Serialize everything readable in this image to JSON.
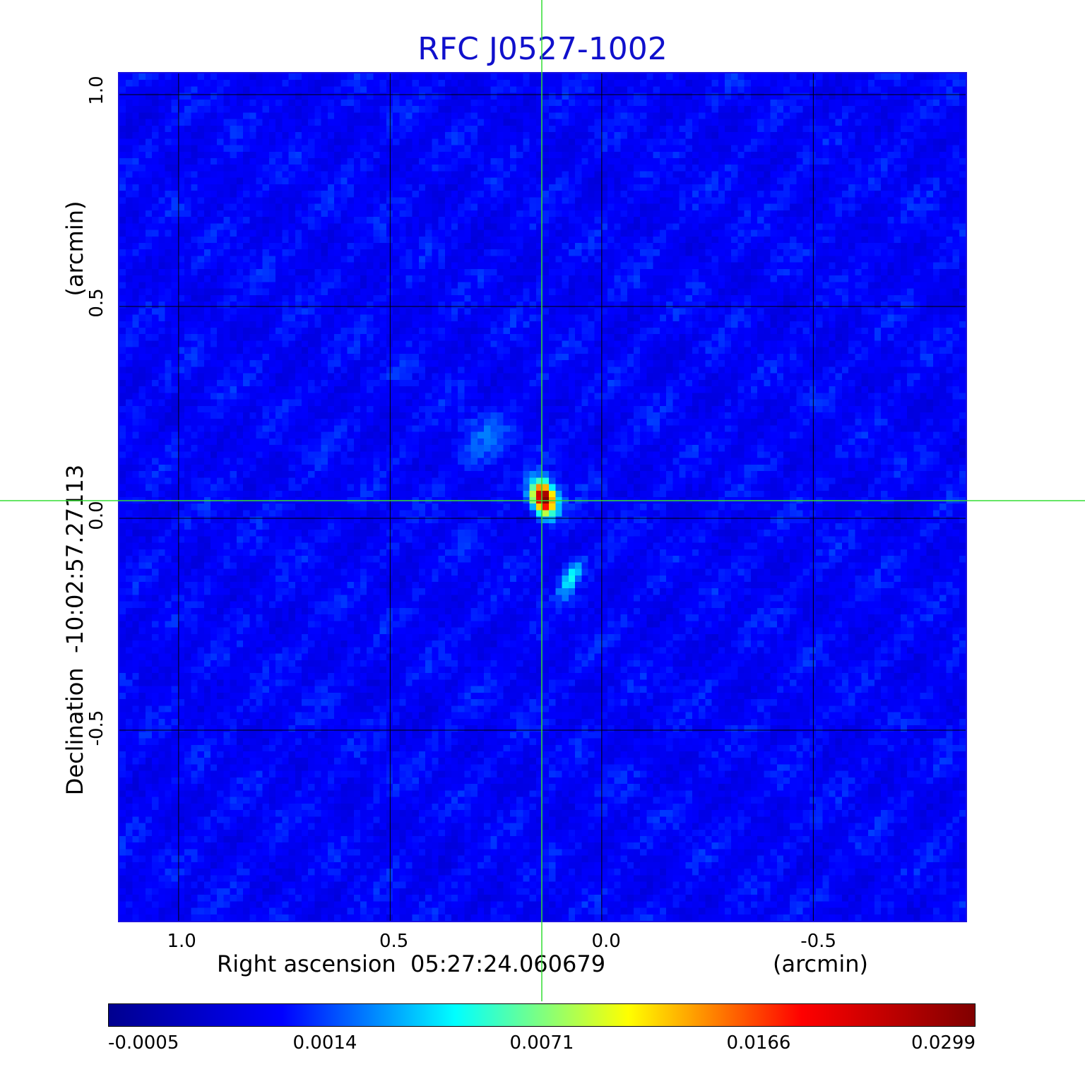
{
  "title": "RFC J0527-1002",
  "x_axis": {
    "label": "Right ascension  05:27:24.060679",
    "unit": "(arcmin)",
    "ticks": [
      "1.0",
      "0.5",
      "0.0",
      "-0.5"
    ]
  },
  "y_axis": {
    "label": "Declination  -10:02:57.27113",
    "unit": "(arcmin)",
    "ticks": [
      "1.0",
      "0.5",
      "0.0",
      "-0.5"
    ]
  },
  "colorbar": {
    "ticks": [
      "-0.0005",
      "0.0014",
      "0.0071",
      "0.0166",
      "0.0299"
    ],
    "colors": [
      "#00008f",
      "#0000ff",
      "#00ffff",
      "#ffff00",
      "#ff0000",
      "#800000"
    ]
  },
  "image": {
    "colormap": "jet",
    "background_color": "#1846f0",
    "frame_color": "#1a10e0",
    "grid_color": "#000000",
    "crosshair_color": "#33dd33",
    "grid_spacing_arcmin": 0.5,
    "ra_range_arcmin": [
      1.14,
      -0.86
    ],
    "dec_range_arcmin": [
      -0.95,
      1.05
    ],
    "source_peak_arcmin": [
      0.145,
      0.055
    ],
    "source_tail_arcmin": [
      0.08,
      -0.13
    ]
  }
}
